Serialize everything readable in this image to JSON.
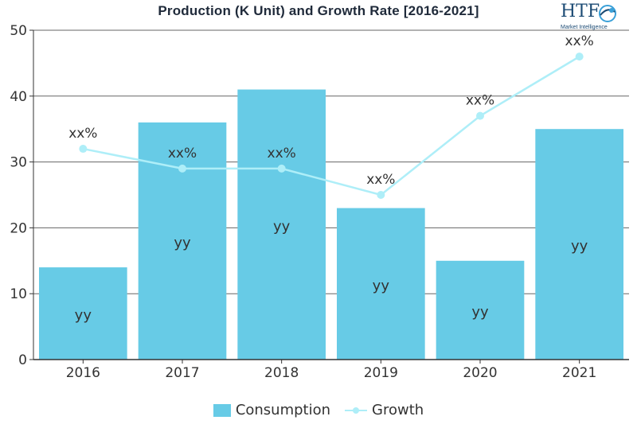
{
  "chart_data": {
    "type": "bar",
    "title": "Production (K Unit) and Growth Rate [2016-2021]",
    "categories": [
      "2016",
      "2017",
      "2018",
      "2019",
      "2020",
      "2021"
    ],
    "series": [
      {
        "name": "Consumption",
        "type": "bar",
        "values": [
          14,
          36,
          41,
          23,
          15,
          35
        ],
        "labels": [
          "yy",
          "yy",
          "yy",
          "yy",
          "yy",
          "yy"
        ],
        "color": "#67cbe6"
      },
      {
        "name": "Growth",
        "type": "line",
        "values": [
          32,
          29,
          29,
          25,
          37,
          46
        ],
        "labels": [
          "xx%",
          "xx%",
          "xx%",
          "xx%",
          "xx%",
          "xx%"
        ],
        "color": "#aeeef8"
      }
    ],
    "ylim": [
      0,
      50
    ],
    "yticks": [
      0,
      10,
      20,
      30,
      40,
      50
    ],
    "grid": true,
    "legend_position": "bottom-center"
  },
  "logo": {
    "brand": "HTF",
    "tagline": "Market Intelligence"
  }
}
